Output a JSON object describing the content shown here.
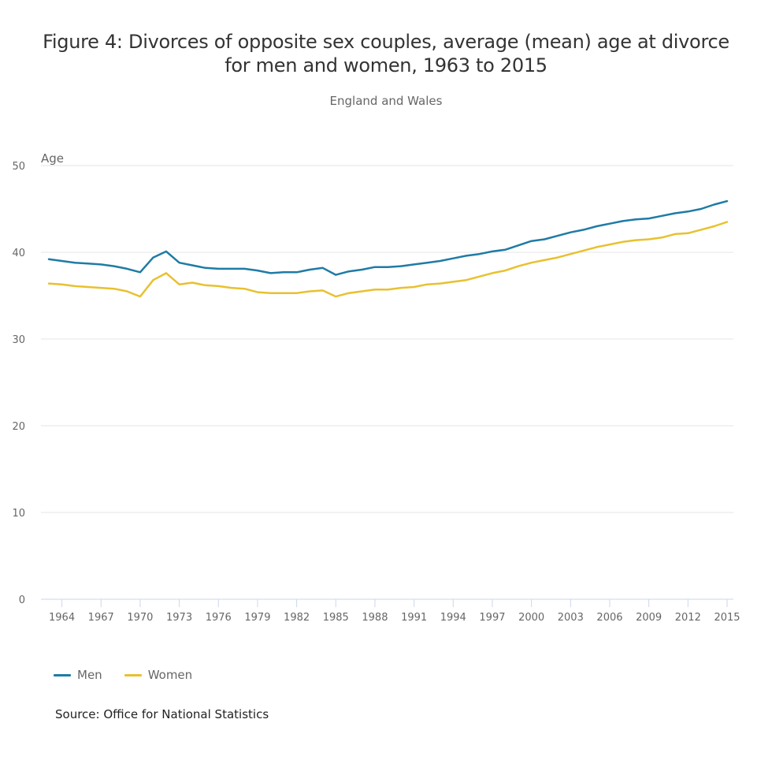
{
  "chart_data": {
    "type": "line",
    "title": "Figure 4: Divorces of opposite sex couples, average (mean) age at divorce for men and women, 1963 to 2015",
    "title_lines": [
      "Figure 4: Divorces of opposite sex couples, average (mean) age at divorce",
      "for men and women, 1963 to 2015"
    ],
    "subtitle": "England and Wales",
    "xlabel": "",
    "ylabel": "Age",
    "ylim": [
      0,
      50
    ],
    "xlim": [
      1963,
      2015
    ],
    "y_ticks": [
      0,
      10,
      20,
      30,
      40,
      50
    ],
    "x_ticks": [
      1964,
      1967,
      1970,
      1973,
      1976,
      1979,
      1982,
      1985,
      1988,
      1991,
      1994,
      1997,
      2000,
      2003,
      2006,
      2009,
      2012,
      2015
    ],
    "grid": "horizontal",
    "legend_position": "bottom-left",
    "x": [
      1963,
      1964,
      1965,
      1966,
      1967,
      1968,
      1969,
      1970,
      1971,
      1972,
      1973,
      1974,
      1975,
      1976,
      1977,
      1978,
      1979,
      1980,
      1981,
      1982,
      1983,
      1984,
      1985,
      1986,
      1987,
      1988,
      1989,
      1990,
      1991,
      1992,
      1993,
      1994,
      1995,
      1996,
      1997,
      1998,
      1999,
      2000,
      2001,
      2002,
      2003,
      2004,
      2005,
      2006,
      2007,
      2008,
      2009,
      2010,
      2011,
      2012,
      2013,
      2014,
      2015
    ],
    "series": [
      {
        "name": "Men",
        "color": "#1f7ba6",
        "values": [
          39.2,
          39.0,
          38.8,
          38.7,
          38.6,
          38.4,
          38.1,
          37.7,
          39.4,
          40.1,
          38.8,
          38.5,
          38.2,
          38.1,
          38.1,
          38.1,
          37.9,
          37.6,
          37.7,
          37.7,
          38.0,
          38.2,
          37.4,
          37.8,
          38.0,
          38.3,
          38.3,
          38.4,
          38.6,
          38.8,
          39.0,
          39.3,
          39.6,
          39.8,
          40.1,
          40.3,
          40.8,
          41.3,
          41.5,
          41.9,
          42.3,
          42.6,
          43.0,
          43.3,
          43.6,
          43.8,
          43.9,
          44.2,
          44.5,
          44.7,
          45.0,
          45.5,
          45.9
        ]
      },
      {
        "name": "Women",
        "color": "#e8c12f",
        "values": [
          36.4,
          36.3,
          36.1,
          36.0,
          35.9,
          35.8,
          35.5,
          34.9,
          36.8,
          37.6,
          36.3,
          36.5,
          36.2,
          36.1,
          35.9,
          35.8,
          35.4,
          35.3,
          35.3,
          35.3,
          35.5,
          35.6,
          34.9,
          35.3,
          35.5,
          35.7,
          35.7,
          35.9,
          36.0,
          36.3,
          36.4,
          36.6,
          36.8,
          37.2,
          37.6,
          37.9,
          38.4,
          38.8,
          39.1,
          39.4,
          39.8,
          40.2,
          40.6,
          40.9,
          41.2,
          41.4,
          41.5,
          41.7,
          42.1,
          42.2,
          42.6,
          43.0,
          43.5
        ]
      }
    ]
  },
  "source": "Source: Office for National Statistics"
}
